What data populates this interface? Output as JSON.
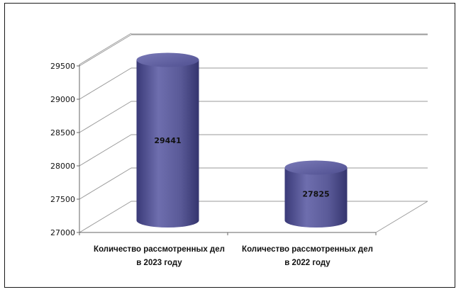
{
  "chart_data": {
    "type": "bar",
    "categories": [
      [
        "Количество рассмотренных дел",
        "в 2023 году"
      ],
      [
        "Количество рассмотренных дел",
        "в 2022 году"
      ]
    ],
    "values": [
      29441,
      27825
    ],
    "data_labels": [
      "29441",
      "27825"
    ],
    "ylim": [
      27000,
      29500
    ],
    "yticks": [
      27000,
      27500,
      28000,
      28500,
      29000,
      29500
    ],
    "ytick_labels": [
      "27000",
      "27500",
      "28000",
      "28500",
      "29000",
      "29500"
    ],
    "grid": true,
    "style": "3d-cylinder",
    "bar_color": "#5f5fa0"
  }
}
